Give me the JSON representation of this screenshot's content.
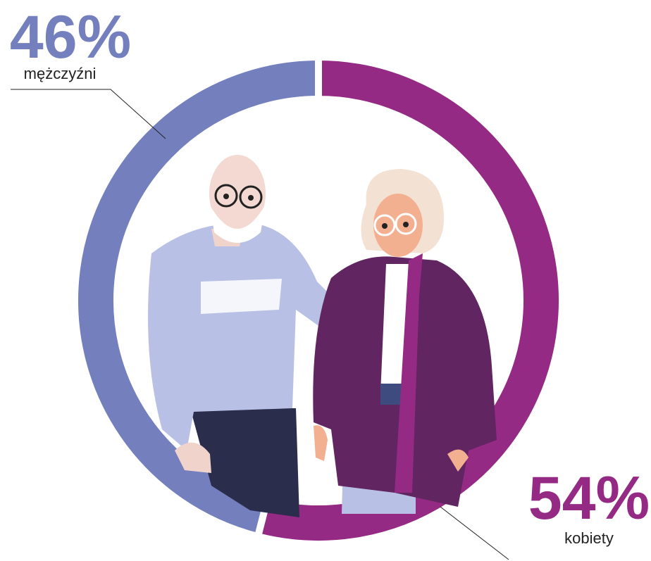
{
  "chart_data": {
    "type": "pie",
    "donut": true,
    "categories": [
      "mężczyźni",
      "kobiety"
    ],
    "values": [
      46,
      54
    ],
    "value_labels": [
      "46%",
      "54%"
    ],
    "colors": [
      "#7480bd",
      "#952a84"
    ]
  }
}
